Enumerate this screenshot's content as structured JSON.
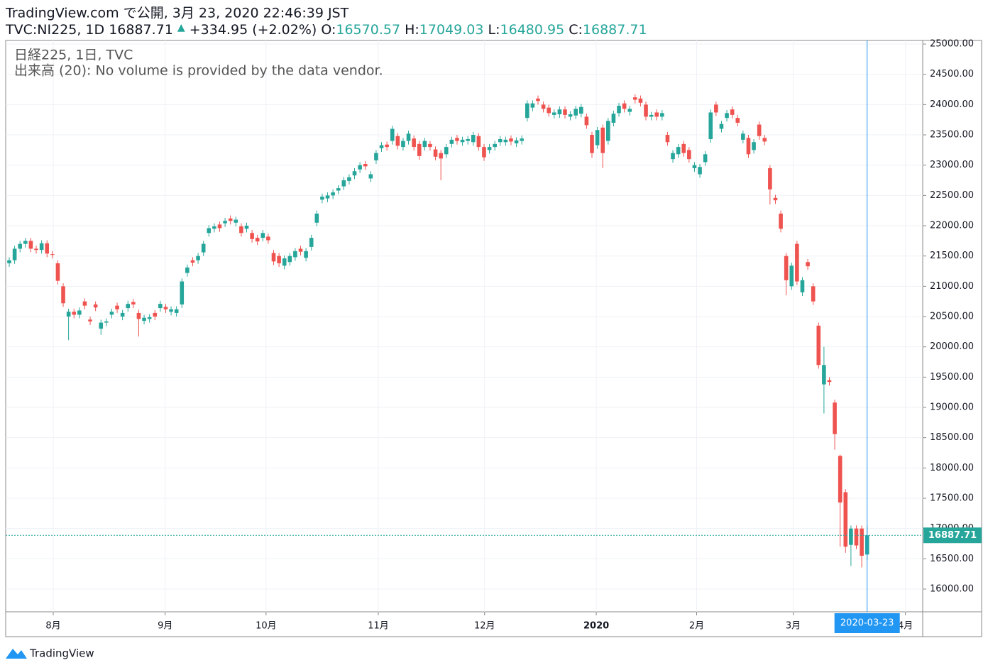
{
  "header": {
    "published": "TradingView.com で公開, 3月 23, 2020 22:46:39 JST",
    "symbol": "TVC:NI225, 1D",
    "arrow": "▲",
    "change": "+334.95 (+2.02%)",
    "ohlc_labels": [
      "O:",
      "H:",
      "L:",
      "C:"
    ]
  },
  "legend": {
    "line1": "日経225, 1日, TVC",
    "line2": "出来高 (20): No volume is provided by the data vendor."
  },
  "footer": {
    "brand": "TradingView"
  },
  "chart_data": {
    "type": "candlestick",
    "up_color": "#26a69a",
    "down_color": "#ef5350",
    "grid": true,
    "cursor_label": "2020-03-23",
    "xlim": [
      -0.66,
      169.3
    ],
    "ylim": [
      15625,
      25059
    ],
    "xticks": [
      {
        "value": 8.15,
        "label": "8月"
      },
      {
        "value": 28.9,
        "label": "9月"
      },
      {
        "value": 47.6,
        "label": "10月"
      },
      {
        "value": 68.4,
        "label": "11月"
      },
      {
        "value": 88.1,
        "label": "12月"
      },
      {
        "value": 108.8,
        "label": "2020"
      },
      {
        "value": 127.4,
        "label": "2月"
      },
      {
        "value": 145.3,
        "label": "3月"
      },
      {
        "value": 166.1,
        "label": "4月"
      }
    ],
    "yticks": [
      {
        "value": 16000,
        "label": "16000.00"
      },
      {
        "value": 16500,
        "label": "16500.00"
      },
      {
        "value": 17000,
        "label": "17000.00"
      },
      {
        "value": 17500,
        "label": "17500.00"
      },
      {
        "value": 18000,
        "label": "18000.00"
      },
      {
        "value": 18500,
        "label": "18500.00"
      },
      {
        "value": 19000,
        "label": "19000.00"
      },
      {
        "value": 19500,
        "label": "19500.00"
      },
      {
        "value": 20000,
        "label": "20000.00"
      },
      {
        "value": 20500,
        "label": "20500.00"
      },
      {
        "value": 21000,
        "label": "21000.00"
      },
      {
        "value": 21500,
        "label": "21500.00"
      },
      {
        "value": 22000,
        "label": "22000.00"
      },
      {
        "value": 22500,
        "label": "22500.00"
      },
      {
        "value": 23000,
        "label": "23000.00"
      },
      {
        "value": 23500,
        "label": "23500.00"
      },
      {
        "value": 24000,
        "label": "24000.00"
      },
      {
        "value": 24500,
        "label": "24500.00"
      },
      {
        "value": 25000,
        "label": "25000.00"
      }
    ],
    "open": [
      21380,
      21430,
      21620,
      21700,
      21750,
      21620,
      21600,
      21710,
      21530,
      21380,
      21000,
      20500,
      20580,
      20530,
      20750,
      20450,
      20700,
      20300,
      20400,
      20530,
      20680,
      20500,
      20640,
      20740,
      20560,
      20430,
      20460,
      20560,
      20640,
      20660,
      20580,
      20560,
      20700,
      21220,
      21430,
      21430,
      21560,
      21880,
      21950,
      22020,
      22040,
      22120,
      22050,
      21990,
      21950,
      21880,
      21800,
      21800,
      21820,
      21550,
      21500,
      21340,
      21400,
      21480,
      21620,
      21470,
      21650,
      22050,
      22430,
      22450,
      22500,
      22580,
      22650,
      22740,
      22830,
      22930,
      23020,
      22780,
      23080,
      23280,
      23340,
      23400,
      23480,
      23300,
      23400,
      23440,
      23350,
      23300,
      23350,
      23260,
      23200,
      23180,
      23350,
      23450,
      23380,
      23400,
      23380,
      23480,
      23300,
      23250,
      23300,
      23380,
      23380,
      23440,
      23360,
      23400,
      23780,
      23950,
      24100,
      24000,
      23950,
      23830,
      23840,
      23920,
      23800,
      23820,
      23850,
      23800,
      23500,
      23330,
      23620,
      23400,
      23700,
      23860,
      24020,
      23880,
      24120,
      24100,
      24000,
      23800,
      23870,
      23800,
      23500,
      23100,
      23180,
      23350,
      23250,
      22950,
      22850,
      23050,
      23430,
      24000,
      23600,
      23780,
      23920,
      23780,
      23420,
      23450,
      23250,
      23670,
      23450,
      22950,
      22460,
      22200,
      21500,
      21000,
      21700,
      20900,
      21400,
      21000,
      20350,
      19380,
      19450,
      19080,
      18200,
      17600,
      16730,
      17000,
      17000,
      16570.57
    ],
    "high": [
      21480,
      21670,
      21750,
      21800,
      21800,
      21670,
      21760,
      21760,
      21580,
      21430,
      21050,
      20630,
      20630,
      20650,
      20800,
      20500,
      20750,
      20450,
      20470,
      20630,
      20730,
      20610,
      20760,
      20790,
      20610,
      20530,
      20540,
      20610,
      20760,
      20710,
      20670,
      20670,
      21130,
      21360,
      21480,
      21550,
      21750,
      22010,
      22040,
      22070,
      22130,
      22170,
      22150,
      22040,
      22050,
      21930,
      21850,
      21930,
      21870,
      21600,
      21550,
      21510,
      21550,
      21630,
      21670,
      21630,
      21850,
      22250,
      22530,
      22550,
      22600,
      22670,
      22800,
      22850,
      22950,
      23050,
      23070,
      22900,
      23250,
      23380,
      23390,
      23650,
      23530,
      23450,
      23570,
      23490,
      23400,
      23450,
      23400,
      23310,
      23250,
      23350,
      23470,
      23500,
      23470,
      23480,
      23550,
      23530,
      23350,
      23350,
      23400,
      23480,
      23470,
      23490,
      23460,
      23490,
      24070,
      24070,
      24150,
      24050,
      24000,
      23920,
      23970,
      23970,
      23890,
      23980,
      24010,
      23850,
      23550,
      23630,
      23670,
      23780,
      23900,
      24030,
      24070,
      23980,
      24170,
      24150,
      24050,
      23880,
      23920,
      23910,
      23550,
      23250,
      23350,
      23400,
      23300,
      23050,
      23020,
      23230,
      23920,
      24050,
      23730,
      23910,
      23970,
      23830,
      23570,
      23500,
      23430,
      23720,
      23500,
      23000,
      22510,
      22250,
      21550,
      21390,
      21750,
      21150,
      21450,
      21050,
      20400,
      20000,
      19500,
      19130,
      18220,
      17650,
      17050,
      17050,
      17050,
      17049.03
    ],
    "low": [
      21320,
      21370,
      21560,
      21640,
      21560,
      21540,
      21540,
      21480,
      21460,
      21030,
      20660,
      20110,
      20470,
      20470,
      20620,
      20360,
      20590,
      20200,
      20340,
      20470,
      20560,
      20440,
      20580,
      20640,
      20170,
      20370,
      20400,
      20440,
      20580,
      20560,
      20520,
      20500,
      20640,
      21160,
      21330,
      21370,
      21500,
      21820,
      21890,
      21900,
      21980,
      22020,
      21990,
      21820,
      21890,
      21720,
      21680,
      21740,
      21700,
      21350,
      21320,
      21280,
      21340,
      21420,
      21510,
      21410,
      21590,
      21990,
      22370,
      22390,
      22440,
      22520,
      22590,
      22680,
      22770,
      22870,
      22920,
      22720,
      23020,
      23220,
      23240,
      23340,
      23260,
      23240,
      23340,
      23240,
      23090,
      23240,
      23240,
      23080,
      22750,
      23120,
      23290,
      23340,
      23320,
      23340,
      23320,
      23240,
      23070,
      23190,
      23240,
      23320,
      23320,
      23330,
      23300,
      23340,
      23720,
      23890,
      24000,
      23870,
      23800,
      23770,
      23780,
      23770,
      23740,
      23760,
      23790,
      23600,
      23120,
      23270,
      22950,
      23340,
      23640,
      23800,
      23870,
      23820,
      24020,
      23970,
      23740,
      23740,
      23740,
      23740,
      23320,
      23040,
      23120,
      23140,
      23040,
      22890,
      22790,
      22990,
      23370,
      23810,
      23540,
      23720,
      23770,
      23640,
      23360,
      23120,
      23190,
      23420,
      23330,
      22350,
      22360,
      21890,
      20850,
      20940,
      21020,
      20840,
      21270,
      20690,
      19640,
      18900,
      19360,
      18300,
      16700,
      16600,
      16380,
      16660,
      16358,
      16480.95
    ],
    "close": [
      21430,
      21620,
      21700,
      21750,
      21620,
      21600,
      21710,
      21540,
      21520,
      21090,
      20720,
      20580,
      20530,
      20600,
      20680,
      20420,
      20650,
      20400,
      20420,
      20580,
      20620,
      20560,
      20710,
      20700,
      20460,
      20480,
      20490,
      20500,
      20710,
      20620,
      20620,
      20620,
      21080,
      21310,
      21390,
      21500,
      21700,
      21960,
      21990,
      21960,
      22080,
      22080,
      22100,
      21880,
      22000,
      21780,
      21740,
      21880,
      21760,
      21410,
      21380,
      21460,
      21500,
      21580,
      21570,
      21580,
      21800,
      22200,
      22480,
      22500,
      22550,
      22620,
      22750,
      22800,
      22900,
      23000,
      22980,
      22850,
      23200,
      23330,
      23300,
      23600,
      23320,
      23400,
      23520,
      23300,
      23150,
      23400,
      23300,
      23140,
      23110,
      23300,
      23420,
      23400,
      23420,
      23430,
      23500,
      23300,
      23130,
      23300,
      23350,
      23430,
      23420,
      23390,
      23410,
      23440,
      24020,
      24020,
      24060,
      23930,
      23860,
      23870,
      23920,
      23830,
      23840,
      23930,
      23960,
      23660,
      23200,
      23580,
      23200,
      23730,
      23850,
      23980,
      23930,
      23930,
      24080,
      24030,
      23800,
      23830,
      23800,
      23860,
      23380,
      23200,
      23300,
      23200,
      23100,
      23000,
      22970,
      23180,
      23870,
      23870,
      23680,
      23860,
      23830,
      23700,
      23520,
      23180,
      23380,
      23480,
      23390,
      22600,
      22420,
      21950,
      21100,
      21340,
      21080,
      21100,
      21330,
      20750,
      19700,
      19700,
      19420,
      18560,
      17430,
      16700,
      17000,
      16720,
      16550,
      16887.71
    ]
  }
}
